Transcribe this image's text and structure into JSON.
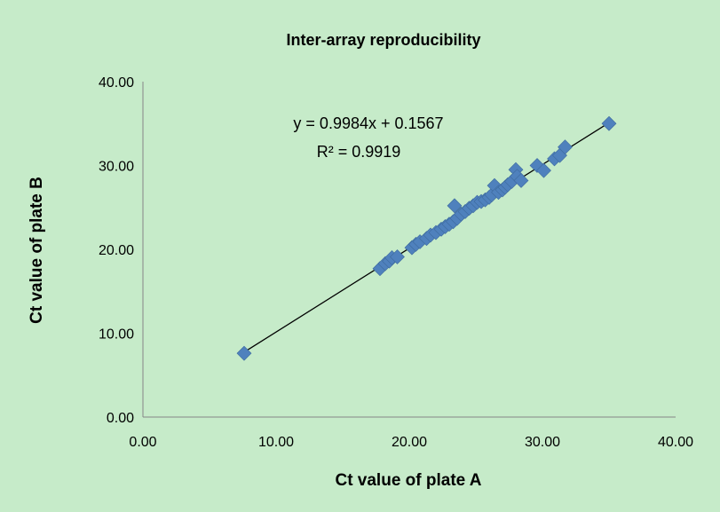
{
  "chart_data": {
    "type": "scatter",
    "title": "Inter-array  reproducibility",
    "xlabel": "Ct value of plate A",
    "ylabel": "Ct value of plate B",
    "xlim": [
      0,
      40
    ],
    "ylim": [
      0,
      40
    ],
    "x_ticks": [
      "0.00",
      "10.00",
      "20.00",
      "30.00",
      "40.00"
    ],
    "y_ticks": [
      "0.00",
      "10.00",
      "20.00",
      "30.00",
      "40.00"
    ],
    "grid": false,
    "legend": "none",
    "series": [
      {
        "x": [
          7.6,
          17.8,
          18.2,
          18.5,
          18.7,
          19.1,
          20.2,
          20.5,
          20.8,
          21.3,
          21.6,
          22.0,
          22.4,
          22.7,
          23.0,
          23.3,
          23.4,
          23.6,
          23.9,
          24.2,
          24.5,
          24.8,
          25.1,
          25.4,
          25.7,
          26.0,
          26.2,
          26.4,
          26.7,
          27.0,
          27.2,
          27.4,
          27.7,
          28.0,
          28.1,
          28.4,
          29.6,
          30.1,
          30.9,
          31.3,
          31.7,
          35.0
        ],
        "y": [
          7.6,
          17.7,
          18.3,
          18.6,
          19.0,
          19.1,
          20.2,
          20.6,
          20.9,
          21.3,
          21.7,
          22.0,
          22.4,
          22.7,
          23.0,
          23.3,
          25.2,
          23.7,
          24.2,
          24.5,
          24.9,
          25.2,
          25.6,
          25.7,
          25.9,
          26.2,
          26.5,
          27.6,
          26.8,
          27.1,
          27.4,
          27.7,
          28.1,
          29.5,
          28.7,
          28.2,
          30.0,
          29.4,
          30.8,
          31.2,
          32.2,
          35.0
        ]
      }
    ],
    "trendline": {
      "type": "linear",
      "slope": 0.9984,
      "intercept": 0.1567,
      "x_range": [
        7.6,
        35.0
      ],
      "equation_label": "y = 0.9984x + 0.1567",
      "r2_label": "R² = 0.9919"
    },
    "colors": {
      "background": "#c6ebc9",
      "marker": "#4f81bd",
      "trendline": "#000000",
      "axis": "#868686"
    }
  }
}
